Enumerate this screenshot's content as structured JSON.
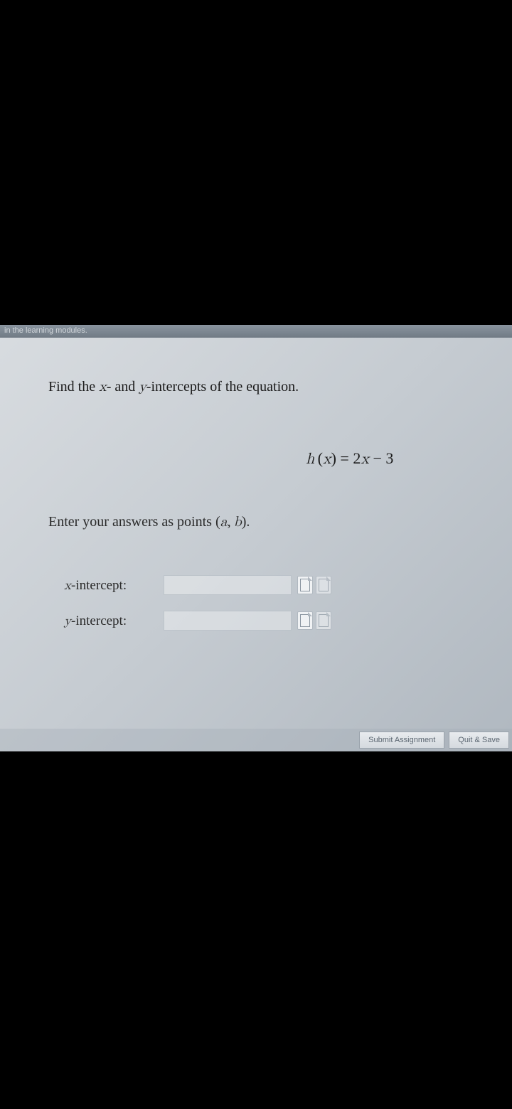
{
  "header": {
    "text": "in the learning modules."
  },
  "question": {
    "prompt_prefix": "Find the ",
    "prompt_var1": "x",
    "prompt_mid": "- and ",
    "prompt_var2": "y",
    "prompt_suffix": "-intercepts of the equation."
  },
  "equation": {
    "func": "h",
    "arg": "x",
    "rhs_coef": "2",
    "rhs_var": "x",
    "rhs_const": "3"
  },
  "instruction": {
    "prefix": "Enter your answers as points ",
    "point_a": "a",
    "point_b": "b"
  },
  "inputs": {
    "x_label_var": "x",
    "x_label_suffix": "-intercept:",
    "y_label_var": "y",
    "y_label_suffix": "-intercept:",
    "x_value": "",
    "y_value": ""
  },
  "buttons": {
    "submit": "Submit Assignment",
    "quit": "Quit & Save"
  }
}
